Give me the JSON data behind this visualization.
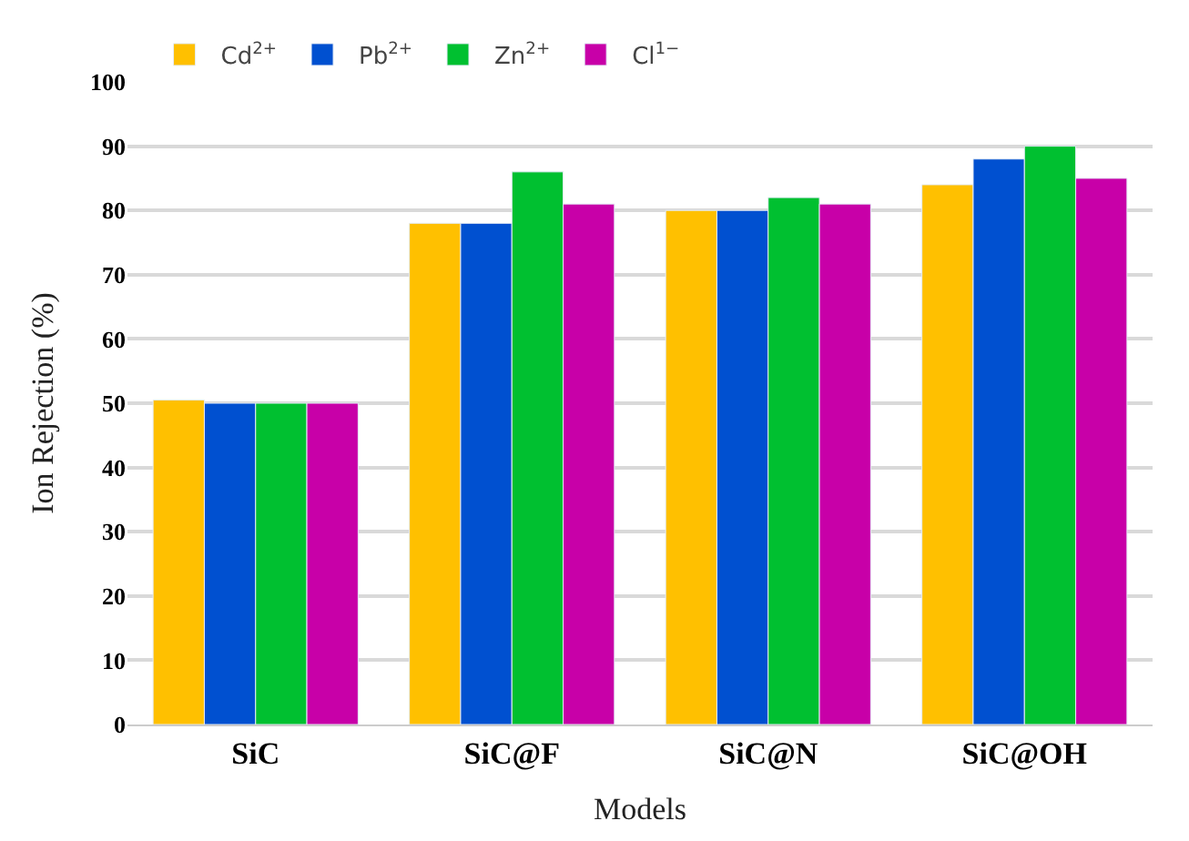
{
  "chart_data": {
    "type": "bar",
    "xlabel": "Models",
    "ylabel": "Ion Rejection (%)",
    "categories": [
      "SiC",
      "SiC@F",
      "SiC@N",
      "SiC@OH"
    ],
    "series": [
      {
        "name": "Cd$^{2+}$",
        "color": "#ffc000",
        "values": [
          50.5,
          78,
          80,
          84
        ]
      },
      {
        "name": "Pb$^{2+}$",
        "color": "#0050d0",
        "values": [
          50,
          78,
          80,
          88
        ]
      },
      {
        "name": "Zn$^{2+}$",
        "color": "#00c030",
        "values": [
          50,
          86,
          82,
          90
        ]
      },
      {
        "name": "Cl$^{1−}$",
        "color": "#c800a8",
        "values": [
          50,
          81,
          81,
          85
        ]
      }
    ],
    "ylim": [
      0,
      100
    ],
    "yticks": [
      0,
      10,
      20,
      30,
      40,
      50,
      60,
      70,
      80,
      90,
      100
    ],
    "grid": "y",
    "legend": "top left"
  }
}
